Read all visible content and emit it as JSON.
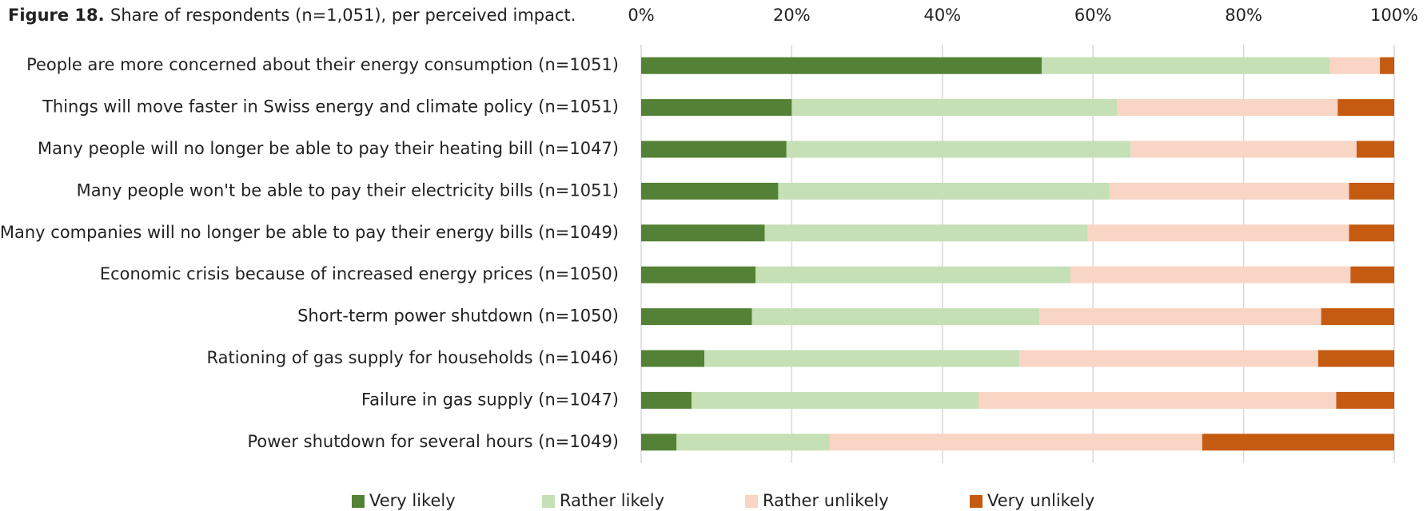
{
  "chart_data": {
    "type": "stacked_barh",
    "figure_label": "Figure 18.",
    "title": "Share of respondents (n=1,051), per perceived impact.",
    "categories": [
      "People are more concerned about their energy consumption (n=1051)",
      "Things will move faster in Swiss energy and climate policy (n=1051)",
      "Many people will no longer be able to pay their heating bill (n=1047)",
      "Many people won't be able to pay their electricity bills (n=1051)",
      "Many companies will no longer be able to pay their energy bills (n=1049)",
      "Economic crisis because of increased energy prices (n=1050)",
      "Short-term power shutdown (n=1050)",
      "Rationing of gas supply for households (n=1046)",
      "Failure in gas supply (n=1047)",
      "Power shutdown for several hours (n=1049)"
    ],
    "series": [
      {
        "name": "Very likely",
        "color": "#538135",
        "values": [
          53.2,
          20.0,
          19.3,
          18.2,
          16.4,
          15.2,
          14.7,
          8.4,
          6.7,
          4.7
        ]
      },
      {
        "name": "Rather likely",
        "color": "#c5e0b4",
        "values": [
          38.2,
          43.2,
          45.7,
          44.0,
          42.9,
          41.8,
          38.2,
          41.8,
          38.1,
          20.3
        ]
      },
      {
        "name": "Rather unlikely",
        "color": "#f8d5c4",
        "values": [
          6.7,
          29.3,
          30.0,
          31.8,
          34.7,
          37.2,
          37.4,
          39.7,
          47.5,
          49.5
        ]
      },
      {
        "name": "Very unlikely",
        "color": "#c55a11",
        "values": [
          1.9,
          7.5,
          5.0,
          6.0,
          6.0,
          5.8,
          9.7,
          10.1,
          7.7,
          25.5
        ]
      }
    ],
    "xlim": [
      0,
      100
    ],
    "xticks": [
      {
        "value": 0,
        "label": "0%"
      },
      {
        "value": 20,
        "label": "20%"
      },
      {
        "value": 40,
        "label": "40%"
      },
      {
        "value": 60,
        "label": "60%"
      },
      {
        "value": 80,
        "label": "80%"
      },
      {
        "value": 100,
        "label": "100%"
      }
    ],
    "grid": true,
    "legend": "bottom"
  }
}
